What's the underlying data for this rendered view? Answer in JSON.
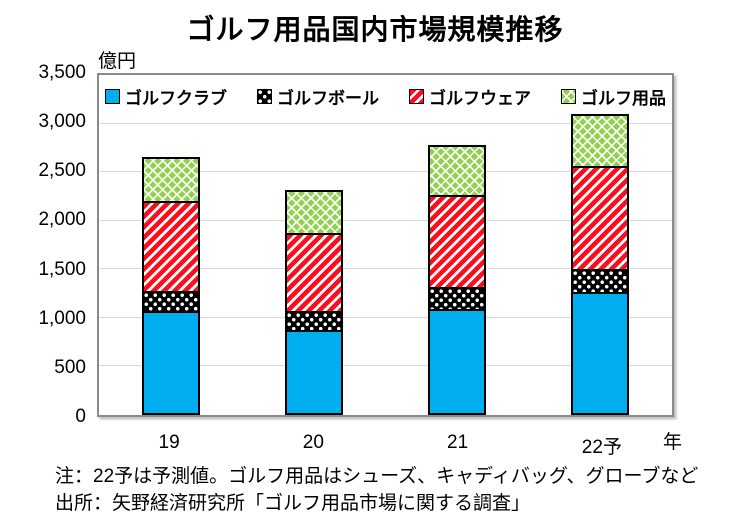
{
  "title": "ゴルフ用品国内市場規模推移",
  "y_axis_unit": "億円",
  "x_axis_unit": "年",
  "notes": {
    "note1": "注：22予は予測値。ゴルフ用品はシューズ、キャディバッグ、グローブなど",
    "note2": "出所：矢野経済研究所「ゴルフ用品市場に関する調査」"
  },
  "colors": {
    "golf_club_blue": "#00aeef",
    "golf_ball_black": "#000000",
    "golf_wear_red": "#fd0d1b",
    "golf_goods_green": "#92d050",
    "gridline_gray": "#d9d9d9",
    "plot_border_gray": "#8a8a8a"
  },
  "chart_data": {
    "type": "bar",
    "stacked": true,
    "title": "ゴルフ用品国内市場規模推移",
    "xlabel": "年",
    "ylabel": "億円",
    "categories": [
      "19",
      "20",
      "21",
      "22予"
    ],
    "series": [
      {
        "name": "ゴルフクラブ",
        "pattern": "solid-blue",
        "values": [
          1060,
          860,
          1080,
          1250
        ]
      },
      {
        "name": "ゴルフボール",
        "pattern": "white-dots-on-black",
        "values": [
          210,
          200,
          225,
          245
        ]
      },
      {
        "name": "ゴルフウェア",
        "pattern": "white-stripes-on-red",
        "values": [
          925,
          810,
          960,
          1060
        ]
      },
      {
        "name": "ゴルフ用品",
        "pattern": "white-lattice-on-green",
        "values": [
          460,
          445,
          515,
          545
        ]
      }
    ],
    "totals": [
      2655,
      2315,
      2780,
      3100
    ],
    "ylim": [
      0,
      3500
    ],
    "ytick_interval": 500,
    "yticks": [
      {
        "value": 0,
        "label": "0"
      },
      {
        "value": 500,
        "label": "500"
      },
      {
        "value": 1000,
        "label": "1,000"
      },
      {
        "value": 1500,
        "label": "1,500"
      },
      {
        "value": 2000,
        "label": "2,000"
      },
      {
        "value": 2500,
        "label": "2,500"
      },
      {
        "value": 3000,
        "label": "3,000"
      },
      {
        "value": 3500,
        "label": "3,500"
      }
    ],
    "grid": true,
    "legend_position": "top-inside-centered"
  }
}
